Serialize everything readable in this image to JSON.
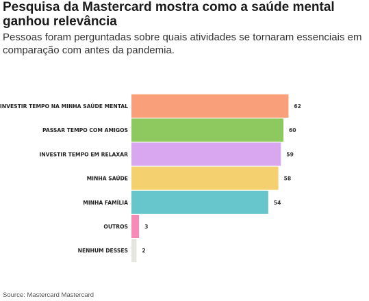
{
  "title": "Pesquisa da Mastercard mostra como a saúde mental ganhou relevância",
  "subtitle": "Pessoas foram perguntadas sobre quais atividades se tornaram essenciais em comparação com antes da pandemia.",
  "source": "Source: Mastercard Mastercard",
  "chart_data": {
    "type": "bar",
    "orientation": "horizontal",
    "categories": [
      "INVESTIR TEMPO NA MINHA SAÚDE MENTAL",
      "PASSAR TEMPO COM AMIGOS",
      "INVESTIR TEMPO EM RELAXAR",
      "MINHA SAÚDE",
      "MINHA FAMÍLIA",
      "OUTROS",
      "NENHUM DESSES"
    ],
    "values": [
      62,
      60,
      59,
      58,
      54,
      3,
      2
    ],
    "colors": [
      "#f9a07a",
      "#8dc95f",
      "#d9a6f0",
      "#f5d06e",
      "#67c6cc",
      "#f78ab7",
      "#e6e6e0"
    ],
    "xlim": [
      0,
      70
    ],
    "grid": false,
    "data_labels": true
  }
}
